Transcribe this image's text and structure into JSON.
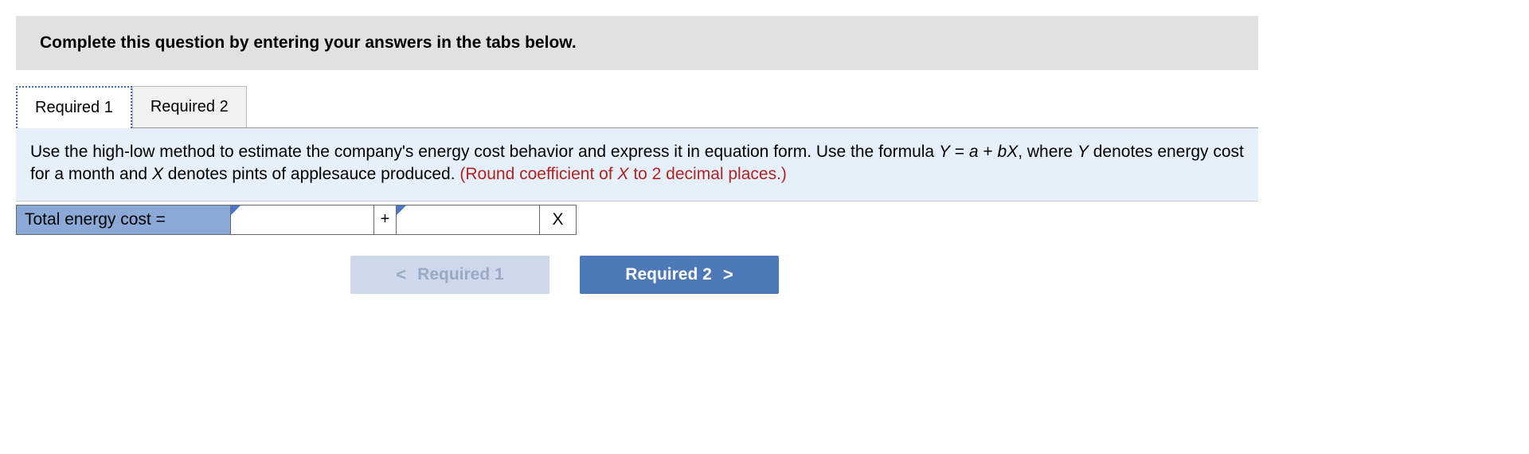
{
  "header": {
    "instruction": "Complete this question by entering your answers in the tabs below."
  },
  "tabs": [
    {
      "label": "Required 1",
      "active": true
    },
    {
      "label": "Required 2",
      "active": false
    }
  ],
  "prompt": {
    "part1": "Use the high-low method to estimate the company's energy cost behavior and express it in equation form. Use the formula ",
    "formula1": "Y",
    "part2": " = ",
    "formula2": "a",
    "part3": " + ",
    "formula3": "bX",
    "part4": ", where ",
    "formula4": "Y",
    "part5": " denotes energy cost for a month and ",
    "formula5": "X",
    "part6": " denotes pints of applesauce produced. ",
    "note_part1": "(Round coefficient of ",
    "note_formula": "X",
    "note_part2": " to 2 decimal places.)"
  },
  "equation": {
    "label": "Total energy cost =",
    "input_a": "",
    "plus": "+",
    "input_b": "",
    "x_label": "X"
  },
  "nav": {
    "prev": {
      "chev": "<",
      "label": "Required 1"
    },
    "next": {
      "label": "Required 2",
      "chev": ">"
    }
  },
  "colors": {
    "header_bg": "#e1e1e1",
    "prompt_bg": "#e6f0fa",
    "note_color": "#b22222",
    "eq_label_bg": "#8aa9d6",
    "dogear": "#4a78c4",
    "nav_disabled_bg": "#cdd9eb",
    "nav_disabled_fg": "#9aaac4",
    "nav_enabled_bg": "#4e79b8",
    "nav_enabled_fg": "#ffffff",
    "tab_active_border": "#3a6bbf"
  }
}
